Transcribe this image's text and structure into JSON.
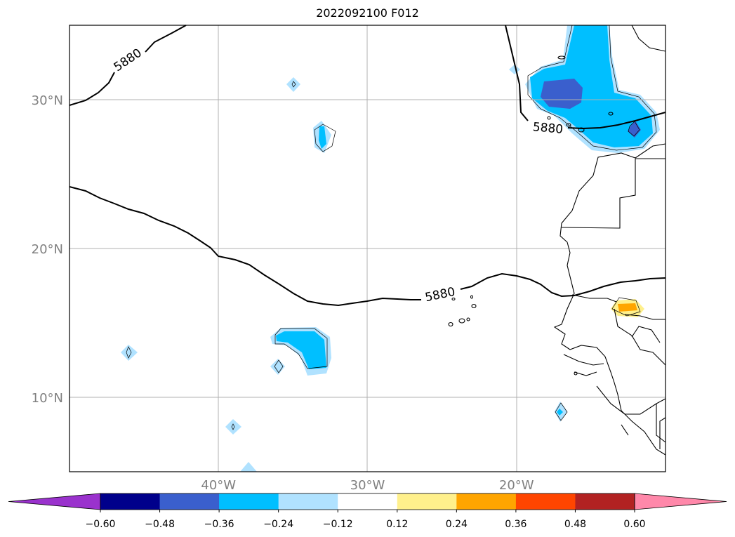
{
  "title": "2022092100 F012",
  "map": {
    "lon_range": [
      -50,
      -10
    ],
    "lat_range": [
      5,
      35
    ],
    "grid": true,
    "lat_ticks": [
      {
        "value": 30,
        "label": "30°N"
      },
      {
        "value": 20,
        "label": "20°N"
      },
      {
        "value": 10,
        "label": "10°N"
      }
    ],
    "lon_ticks": [
      {
        "value": -40,
        "label": "40°W"
      },
      {
        "value": -30,
        "label": "30°W"
      },
      {
        "value": -20,
        "label": "20°W"
      }
    ],
    "contour_value_label": "5880",
    "contour_color": "#000000"
  },
  "colorbar": {
    "extend": "both",
    "ticks": [
      "−0.60",
      "−0.48",
      "−0.36",
      "−0.24",
      "−0.12",
      "0.12",
      "0.24",
      "0.36",
      "0.48",
      "0.60"
    ],
    "colors": [
      "#9a32cd",
      "#00008b",
      "#3a5fcd",
      "#00bfff",
      "#b0e2ff",
      "#ffffff",
      "#fff08c",
      "#ffa500",
      "#ff4500",
      "#b22222",
      "#ff88aa"
    ]
  }
}
